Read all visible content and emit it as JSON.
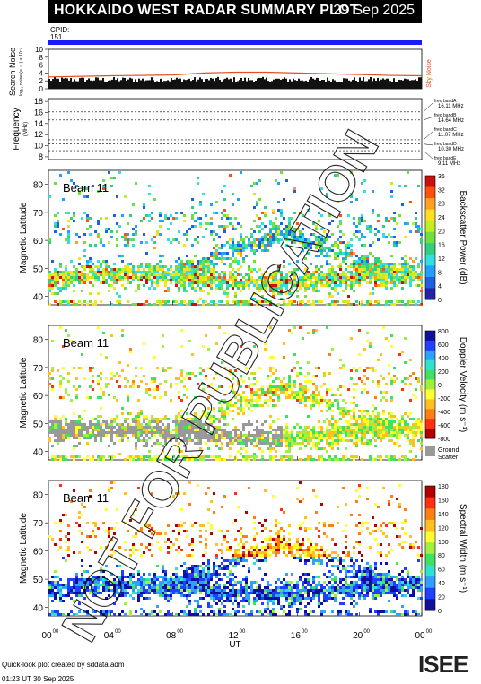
{
  "header": {
    "title": "HOKKAIDO WEST RADAR SUMMARY PLOT",
    "date": "29 Sep 2025",
    "cpid_label": "CPID:",
    "cpid_value": "151"
  },
  "noise_panel": {
    "ylabel": "Search Noise",
    "sublabel": "log₁₀ noise (a. u.) × 10⁻²",
    "ticks": [
      "0",
      "2",
      "4",
      "6",
      "8",
      "10"
    ],
    "side_label": "Sky Noise",
    "colors": {
      "search": "#000000",
      "sky": "#e05020"
    }
  },
  "freq_panel": {
    "ylabel": "Frequency",
    "unit": "(MHz)",
    "ticks": [
      "8",
      "10",
      "12",
      "14",
      "16",
      "18"
    ],
    "bands": [
      {
        "label": "freq bandA",
        "mhz": "16.11 MHz"
      },
      {
        "label": "freq bandB",
        "mhz": "14.64 MHz"
      },
      {
        "label": "freq bandC",
        "mhz": "11.07 MHz"
      },
      {
        "label": "freq bandD",
        "mhz": "10.30 MHz"
      },
      {
        "label": "freq bandE",
        "mhz": "9.11 MHz"
      }
    ]
  },
  "panels": [
    {
      "beam": "Beam 11",
      "ylabel": "Magnetic Latitude",
      "cb_label": "Backscatter Power (dB)",
      "cb_ticks": [
        "0",
        "4",
        "8",
        "12",
        "16",
        "20",
        "24",
        "28",
        "32",
        "36"
      ],
      "ground": false
    },
    {
      "beam": "Beam 11",
      "ylabel": "Magnetic Latitude",
      "cb_label": "Doppler Velocity (m s⁻¹)",
      "cb_ticks": [
        "-800",
        "-600",
        "-400",
        "-200",
        "0",
        "200",
        "400",
        "600",
        "800"
      ],
      "ground": true,
      "ground_label_1": "Ground",
      "ground_label_2": "Scatter"
    },
    {
      "beam": "Beam 11",
      "ylabel": "Magnetic Latitude",
      "cb_label": "Spectral Width (m s⁻¹)",
      "cb_ticks": [
        "0",
        "20",
        "40",
        "60",
        "80",
        "100",
        "120",
        "140",
        "160",
        "180"
      ],
      "ground": false
    }
  ],
  "x_axis": {
    "label": "UT",
    "ticks": [
      "00",
      "04",
      "08",
      "12",
      "16",
      "20",
      "00"
    ],
    "sup": "00"
  },
  "lat_ticks": [
    "40",
    "50",
    "60",
    "70",
    "80"
  ],
  "watermark": "NOT FOR PUBLICATION",
  "footer": {
    "line1": "Quick-look plot created by sddata.adm",
    "line2": "01:23 UT 30 Sep 2025",
    "logo": "ISEE"
  },
  "chart_data": [
    {
      "type": "line",
      "title": "Search Noise / Sky Noise",
      "xlabel": "UT",
      "ylabel": "Search Noise",
      "x": [
        0,
        4,
        8,
        10,
        12,
        14,
        16,
        18,
        20,
        22,
        24
      ],
      "series": [
        {
          "name": "Sky Noise",
          "values": [
            3.0,
            3.3,
            3.5,
            4.0,
            4.2,
            4.2,
            4.0,
            3.8,
            3.6,
            3.4,
            3.3
          ]
        }
      ],
      "ylim": [
        0,
        10
      ],
      "xlim": [
        0,
        24
      ]
    },
    {
      "type": "heatmap",
      "title": "Beam 11",
      "xlabel": "UT",
      "ylabel": "Magnetic Latitude",
      "colorbar": "Backscatter Power (dB)",
      "clim": [
        0,
        36
      ],
      "ylim": [
        37,
        85
      ],
      "xlim": [
        0,
        24
      ]
    },
    {
      "type": "heatmap",
      "title": "Beam 11",
      "xlabel": "UT",
      "ylabel": "Magnetic Latitude",
      "colorbar": "Doppler Velocity (m s⁻¹)",
      "clim": [
        -800,
        800
      ],
      "ylim": [
        37,
        85
      ],
      "xlim": [
        0,
        24
      ]
    },
    {
      "type": "heatmap",
      "title": "Beam 11",
      "xlabel": "UT",
      "ylabel": "Magnetic Latitude",
      "colorbar": "Spectral Width (m s⁻¹)",
      "clim": [
        0,
        180
      ],
      "ylim": [
        37,
        85
      ],
      "xlim": [
        0,
        24
      ]
    }
  ]
}
